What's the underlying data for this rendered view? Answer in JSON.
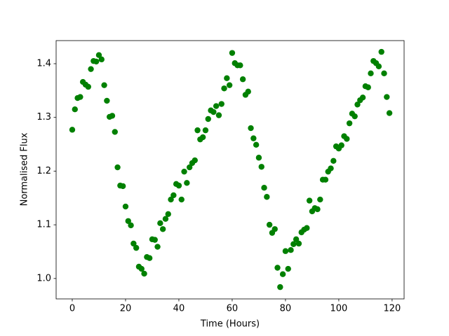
{
  "chart_data": {
    "type": "scatter",
    "color": "#008000",
    "xlabel": "Time (Hours)",
    "ylabel": "Normalised Flux",
    "xlim": [
      -6.05,
      124.5
    ],
    "ylim": [
      0.962,
      1.443
    ],
    "xticks": [
      0,
      20,
      40,
      60,
      80,
      100,
      120
    ],
    "yticks": [
      {
        "value": 1,
        "label": "1.0"
      },
      1.1,
      1.2,
      1.3,
      1.4
    ],
    "x": [
      0,
      1,
      2,
      3,
      4,
      5,
      6,
      7,
      8,
      9,
      10,
      11,
      12,
      13,
      14,
      15,
      16,
      17,
      18,
      19,
      20,
      21,
      22,
      23,
      24,
      25,
      26,
      27,
      28,
      29,
      30,
      31,
      32,
      33,
      34,
      35,
      36,
      37,
      38,
      39,
      40,
      41,
      42,
      43,
      44,
      45,
      46,
      47,
      48,
      49,
      50,
      51,
      52,
      53,
      54,
      55,
      56,
      57,
      58,
      59,
      60,
      61,
      62,
      63,
      64,
      65,
      66,
      67,
      68,
      69,
      70,
      71,
      72,
      73,
      74,
      75,
      76,
      77,
      78,
      79,
      80,
      81,
      82,
      83,
      84,
      85,
      86,
      87,
      88,
      89,
      90,
      91,
      92,
      93,
      94,
      95,
      96,
      97,
      98,
      99,
      100,
      101,
      102,
      103,
      104,
      105,
      106,
      107,
      108,
      109,
      110,
      111,
      112,
      113,
      114,
      115,
      116,
      117,
      118,
      119
    ],
    "y": [
      1.277,
      1.315,
      1.336,
      1.338,
      1.366,
      1.361,
      1.357,
      1.39,
      1.405,
      1.404,
      1.416,
      1.408,
      1.36,
      1.331,
      1.301,
      1.303,
      1.273,
      1.207,
      1.173,
      1.172,
      1.134,
      1.107,
      1.099,
      1.065,
      1.057,
      1.022,
      1.018,
      1.009,
      1.04,
      1.038,
      1.073,
      1.072,
      1.059,
      1.103,
      1.092,
      1.111,
      1.12,
      1.147,
      1.155,
      1.176,
      1.173,
      1.147,
      1.199,
      1.178,
      1.207,
      1.215,
      1.22,
      1.276,
      1.259,
      1.263,
      1.276,
      1.297,
      1.313,
      1.31,
      1.321,
      1.304,
      1.325,
      1.354,
      1.373,
      1.36,
      1.42,
      1.401,
      1.397,
      1.397,
      1.371,
      1.342,
      1.348,
      1.28,
      1.261,
      1.249,
      1.225,
      1.208,
      1.169,
      1.152,
      1.1,
      1.085,
      1.092,
      1.02,
      0.984,
      1.008,
      1.051,
      1.018,
      1.053,
      1.064,
      1.073,
      1.065,
      1.086,
      1.091,
      1.094,
      1.145,
      1.125,
      1.131,
      1.129,
      1.147,
      1.184,
      1.184,
      1.199,
      1.205,
      1.219,
      1.246,
      1.242,
      1.248,
      1.265,
      1.26,
      1.289,
      1.307,
      1.302,
      1.324,
      1.332,
      1.337,
      1.358,
      1.356,
      1.382,
      1.405,
      1.401,
      1.395,
      1.422,
      1.382,
      1.338,
      1.308
    ]
  }
}
